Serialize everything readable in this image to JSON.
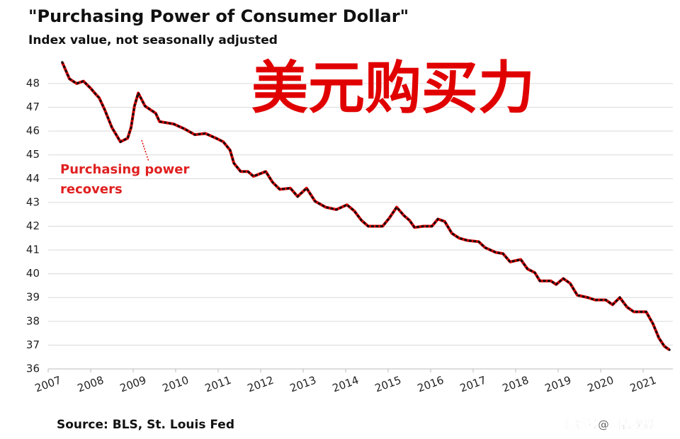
{
  "chart_data": {
    "type": "line",
    "title": "\"Purchasing  Power of Consumer  Dollar\"",
    "subtitle": "Index value, not seasonally adjusted",
    "overlay_title": "美元购买力",
    "annotation": [
      "Purchasing power",
      "recovers"
    ],
    "source": "Source: BLS, St. Louis Fed",
    "watermark": "搜狐号@图表视界",
    "x": [
      2007.33,
      2007.5,
      2007.67,
      2007.83,
      2008.0,
      2008.12,
      2008.2,
      2008.33,
      2008.5,
      2008.7,
      2008.87,
      2008.95,
      2009.03,
      2009.12,
      2009.28,
      2009.53,
      2009.62,
      2009.95,
      2010.2,
      2010.45,
      2010.7,
      2010.95,
      2011.12,
      2011.28,
      2011.37,
      2011.53,
      2011.7,
      2011.83,
      2012.12,
      2012.28,
      2012.45,
      2012.7,
      2012.87,
      2013.08,
      2013.28,
      2013.53,
      2013.78,
      2014.03,
      2014.2,
      2014.37,
      2014.53,
      2014.87,
      2015.03,
      2015.2,
      2015.37,
      2015.5,
      2015.62,
      2015.83,
      2016.03,
      2016.17,
      2016.33,
      2016.5,
      2016.67,
      2016.87,
      2017.13,
      2017.28,
      2017.53,
      2017.7,
      2017.87,
      2018.12,
      2018.28,
      2018.45,
      2018.57,
      2018.83,
      2018.95,
      2019.12,
      2019.28,
      2019.45,
      2019.7,
      2019.87,
      2020.12,
      2020.28,
      2020.45,
      2020.62,
      2020.78,
      2021.07,
      2021.23,
      2021.37,
      2021.5,
      2021.62
    ],
    "series": [
      {
        "name": "Purchasing Power",
        "color": "#e00000",
        "values": [
          48.9,
          48.2,
          48.0,
          48.1,
          47.8,
          47.55,
          47.4,
          46.9,
          46.15,
          45.55,
          45.7,
          46.15,
          47.05,
          47.6,
          47.05,
          46.75,
          46.4,
          46.3,
          46.1,
          45.85,
          45.9,
          45.7,
          45.55,
          45.2,
          44.65,
          44.3,
          44.3,
          44.1,
          44.3,
          43.85,
          43.55,
          43.6,
          43.25,
          43.6,
          43.05,
          42.8,
          42.7,
          42.9,
          42.65,
          42.25,
          42.0,
          42.0,
          42.35,
          42.8,
          42.45,
          42.25,
          41.95,
          42.0,
          42.0,
          42.3,
          42.2,
          41.7,
          41.5,
          41.4,
          41.35,
          41.1,
          40.9,
          40.85,
          40.5,
          40.6,
          40.2,
          40.05,
          39.7,
          39.7,
          39.55,
          39.8,
          39.6,
          39.1,
          39.0,
          38.9,
          38.9,
          38.7,
          39.0,
          38.6,
          38.4,
          38.4,
          37.9,
          37.3,
          36.95,
          36.8
        ]
      }
    ],
    "xlim": [
      2007,
      2021.7
    ],
    "xticks": [
      2007,
      2008,
      2009,
      2010,
      2011,
      2012,
      2013,
      2014,
      2015,
      2016,
      2017,
      2018,
      2019,
      2020,
      2021
    ],
    "ylim": [
      36,
      49
    ],
    "yticks": [
      36,
      37,
      38,
      39,
      40,
      41,
      42,
      43,
      44,
      45,
      46,
      47,
      48
    ],
    "grid": true
  }
}
